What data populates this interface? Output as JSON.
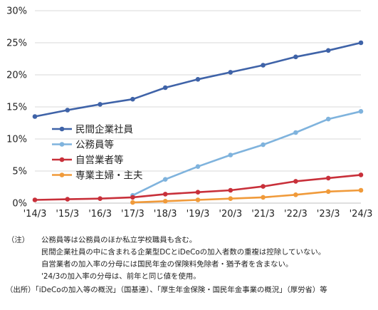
{
  "chart_data": {
    "type": "line",
    "categories": [
      "'14/3",
      "'15/3",
      "'16/3",
      "'17/3",
      "'18/3",
      "'19/3",
      "'20/3",
      "'21/3",
      "'22/3",
      "'23/3",
      "'24/3"
    ],
    "ylim": [
      0,
      30
    ],
    "yticks": [
      0,
      5,
      10,
      15,
      20,
      25,
      30
    ],
    "ytick_labels": [
      "0%",
      "5%",
      "10%",
      "15%",
      "20%",
      "25%",
      "30%"
    ],
    "grid": "horizontal",
    "legend_position": "left",
    "series": [
      {
        "name": "民間企業社員",
        "color": "#3f63a8",
        "values": [
          13.5,
          14.5,
          15.4,
          16.2,
          18.0,
          19.3,
          20.4,
          21.5,
          22.8,
          23.8,
          25.0
        ]
      },
      {
        "name": "公務員等",
        "color": "#7fb3dd",
        "values": [
          null,
          null,
          null,
          1.2,
          3.7,
          5.7,
          7.5,
          9.1,
          11.0,
          13.1,
          14.3
        ]
      },
      {
        "name": "自営業者等",
        "color": "#c8303a",
        "values": [
          0.5,
          0.6,
          0.7,
          0.9,
          1.4,
          1.7,
          2.0,
          2.6,
          3.4,
          3.9,
          4.4
        ]
      },
      {
        "name": "専業主婦・主夫",
        "color": "#f09a3a",
        "values": [
          null,
          null,
          null,
          0.1,
          0.3,
          0.5,
          0.7,
          0.9,
          1.3,
          1.8,
          2.0
        ]
      }
    ]
  },
  "notes": {
    "label": "（注）",
    "lines": [
      "公務員等は公務員のほか私立学校職員も含む。",
      "民間企業社員の中に含まれる企業型DCとiDeCoの加入者数の重複は控除していない。",
      "自営業者の加入率の分母には国民年金の保険料免除者・猶予者を含まない。",
      "'24/3の加入率の分母は、前年と同じ値を使用。"
    ]
  },
  "source": "（出所）「iDeCoの加入等の概況」（国基連）、「厚生年金保険・国民年金事業の概況」（厚労省）等"
}
